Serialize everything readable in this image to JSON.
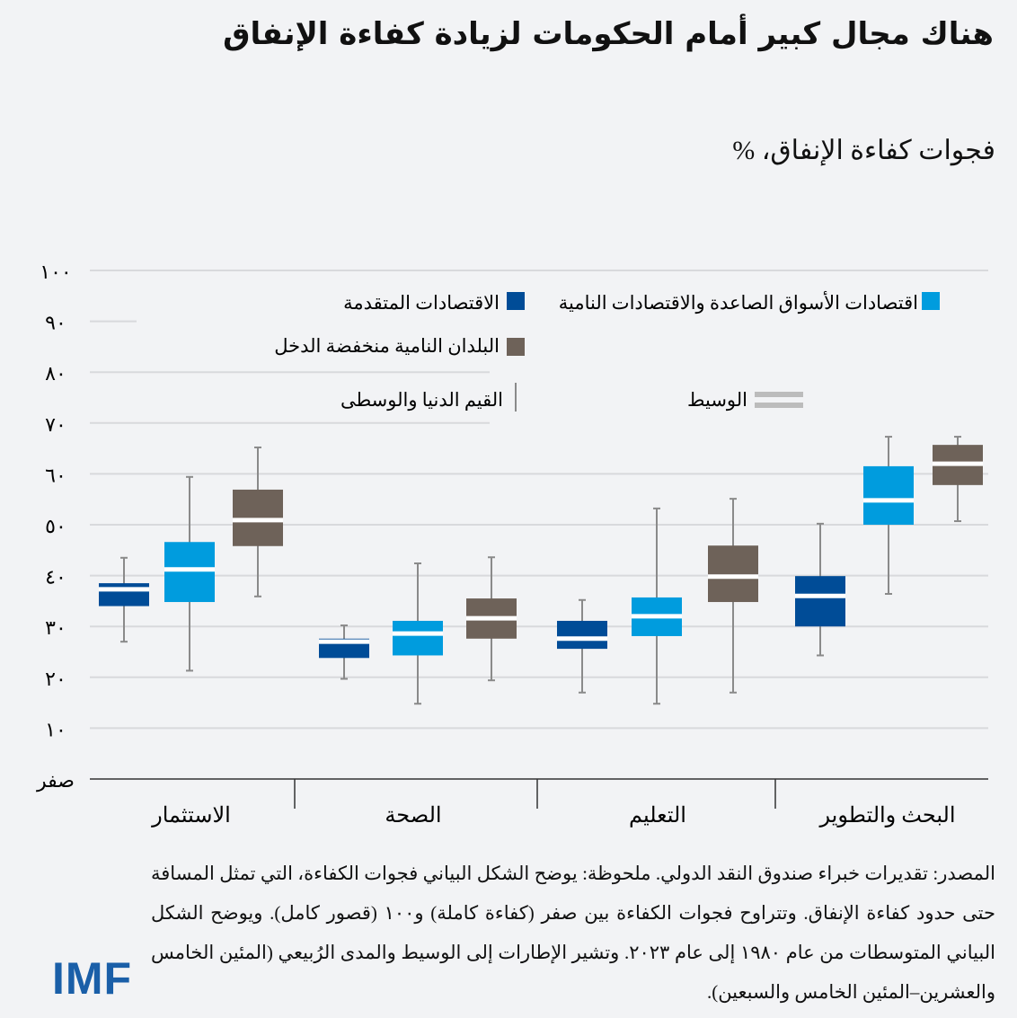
{
  "title": "هناك مجال كبير أمام الحكومات لزيادة كفاءة الإنفاق",
  "note": "المصدر: تقديرات خبراء صندوق النقد الدولي. ملحوظة: يوضح الشكل البياني فجوات الكفاءة، التي تمثل المسافة حتى حدود كفاءة الإنفاق. وتتراوح فجوات الكفاءة بين صفر (كفاءة كاملة) و١٠٠ (قصور كامل). ويوضح الشكل البياني المتوسطات من عام ١٩٨٠ إلى عام ٢٠٢٣. وتشير الإطارات إلى الوسيط والمدى الرُبيعي (المئين الخامس والعشرين–المئين الخامس والسبعين).",
  "logo": "IMF",
  "chart_data": {
    "type": "boxplot",
    "title": "فجوات كفاءة الإنفاق، %",
    "ylim": [
      0,
      100
    ],
    "yticks": [
      0,
      10,
      20,
      30,
      40,
      50,
      60,
      70,
      80,
      90,
      100
    ],
    "ytick_labels": [
      "صفر",
      "١٠",
      "٢٠",
      "٣٠",
      "٤٠",
      "٥٠",
      "٦٠",
      "٧٠",
      "٨٠",
      "٩٠",
      "١٠٠"
    ],
    "grid": true,
    "categories": [
      "الاستثمار",
      "الصحة",
      "التعليم",
      "البحث والتطوير"
    ],
    "legend": {
      "placement": "top",
      "whisker_label": "القيم الدنيا والوسطى",
      "median_label": "الوسيط"
    },
    "series": [
      {
        "name": "الاقتصادات المتقدمة",
        "color": "#004c97",
        "boxes": [
          {
            "min": 27,
            "q1": 34,
            "median": 37.3,
            "q3": 38.5,
            "max": 43.5
          },
          {
            "min": 19.7,
            "q1": 23.8,
            "median": 27,
            "q3": 27.6,
            "max": 30.2
          },
          {
            "min": 17,
            "q1": 25.6,
            "median": 27.6,
            "q3": 31.1,
            "max": 35.2
          },
          {
            "min": 24.3,
            "q1": 30,
            "median": 36,
            "q3": 39.9,
            "max": 50.2
          }
        ]
      },
      {
        "name": "اقتصادات الأسواق الصاعدة والاقتصادات النامية",
        "color": "#009cde",
        "boxes": [
          {
            "min": 21.3,
            "q1": 34.8,
            "median": 41.2,
            "q3": 46.6,
            "max": 59.4
          },
          {
            "min": 14.8,
            "q1": 24.3,
            "median": 28.6,
            "q3": 31.1,
            "max": 42.4
          },
          {
            "min": 14.8,
            "q1": 28.1,
            "median": 32,
            "q3": 35.7,
            "max": 53.2
          },
          {
            "min": 36.4,
            "q1": 50,
            "median": 54.8,
            "q3": 61.5,
            "max": 67.3
          }
        ]
      },
      {
        "name": "البلدان النامية منخفضة الدخل",
        "color": "#6e6259",
        "boxes": [
          {
            "min": 35.9,
            "q1": 45.8,
            "median": 50.9,
            "q3": 56.9,
            "max": 65.2
          },
          {
            "min": 19.4,
            "q1": 27.6,
            "median": 31.6,
            "q3": 35.5,
            "max": 43.6
          },
          {
            "min": 17,
            "q1": 34.8,
            "median": 39.8,
            "q3": 45.9,
            "max": 55.1
          },
          {
            "min": 50.7,
            "q1": 57.8,
            "median": 62,
            "q3": 65.7,
            "max": 67.3
          }
        ]
      }
    ]
  }
}
